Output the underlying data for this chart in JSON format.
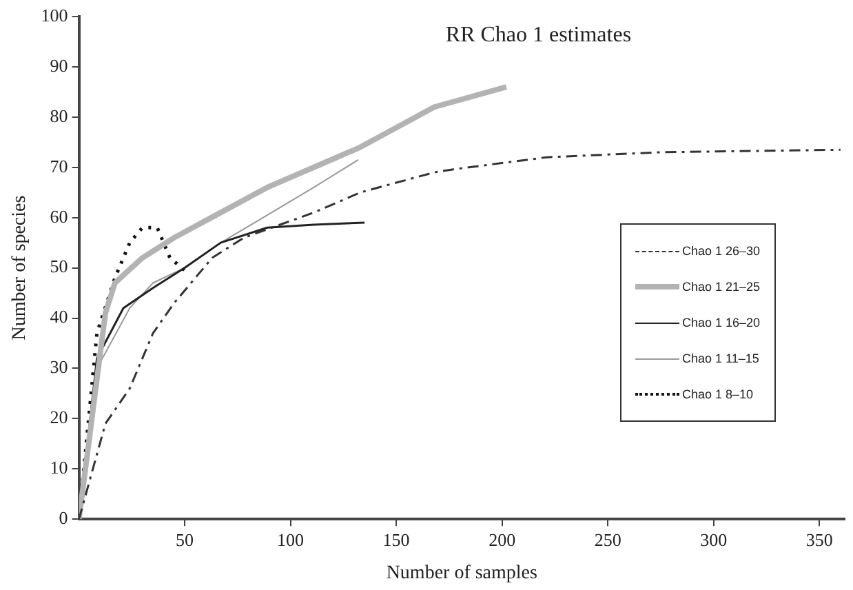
{
  "chart_data": {
    "type": "line",
    "title": "RR Chao 1 estimates",
    "xlabel": "Number of samples",
    "ylabel": "Number of species",
    "xlim": [
      0,
      362
    ],
    "xticks": [
      50,
      100,
      150,
      200,
      250,
      300,
      350
    ],
    "ylim": [
      0,
      100
    ],
    "yticks": [
      0,
      10,
      20,
      30,
      40,
      50,
      60,
      70,
      80,
      90,
      100
    ],
    "grid": false,
    "legend": "right",
    "marker": "none",
    "series": [
      {
        "name": "Chao 1 26–30",
        "color": "#333333",
        "line_style": "dashed",
        "x": [
          0,
          12.5,
          24,
          35,
          45,
          63,
          78,
          111,
          133,
          168,
          177,
          221,
          275,
          360
        ],
        "values": [
          0,
          19,
          26,
          37,
          43,
          52,
          56,
          61,
          65,
          69,
          69.6,
          72,
          73,
          73.5
        ]
      },
      {
        "name": "Chao 1 21–25",
        "color": "#b3b3b3",
        "line_style": "solid",
        "x": [
          0,
          12.5,
          17,
          30,
          45,
          67,
          89,
          111,
          133,
          168,
          202
        ],
        "values": [
          0,
          41,
          47,
          52,
          56,
          61,
          66,
          70,
          74,
          82,
          86
        ]
      },
      {
        "name": "Chao 1 16–20",
        "color": "#222222",
        "line_style": "solid",
        "x": [
          0,
          8.5,
          21,
          35,
          50,
          67,
          89,
          111,
          135
        ],
        "values": [
          0,
          32,
          42,
          46,
          50,
          55,
          58,
          58.6,
          59
        ]
      },
      {
        "name": "Chao 1 11–15",
        "color": "#999999",
        "line_style": "solid",
        "x": [
          0,
          8.5,
          24,
          35,
          50,
          67,
          89,
          111,
          132
        ],
        "values": [
          0,
          30,
          42,
          47,
          50,
          55,
          60.5,
          66,
          71.5
        ]
      },
      {
        "name": "Chao 1 8–10",
        "color": "#111111",
        "line_style": "dotted",
        "x": [
          0,
          8.5,
          17,
          24,
          30,
          37,
          43,
          50
        ],
        "values": [
          0,
          37,
          48,
          55,
          58,
          58,
          52,
          49.5
        ]
      }
    ]
  }
}
